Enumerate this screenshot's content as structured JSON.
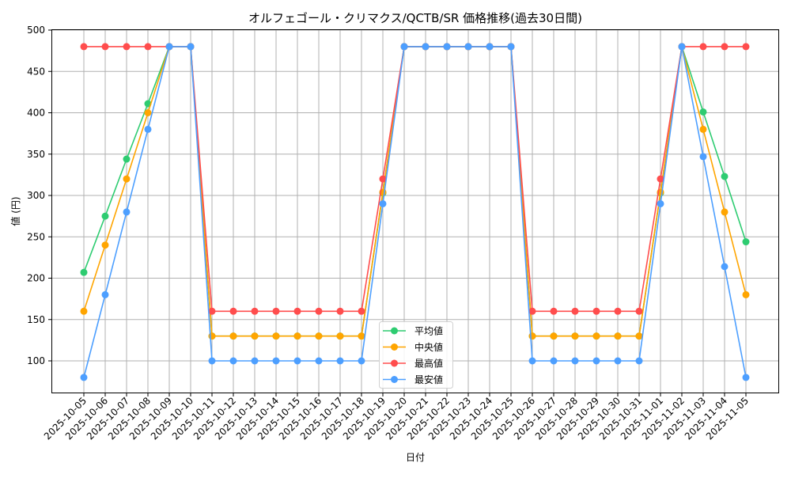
{
  "chart_data": {
    "type": "line",
    "title": "オルフェゴール・クリマクス/QCTB/SR 価格推移(過去30日間)",
    "xlabel": "日付",
    "ylabel": "値 (円)",
    "ylim": [
      60,
      500
    ],
    "yticks": [
      100,
      150,
      200,
      250,
      300,
      350,
      400,
      450,
      500
    ],
    "grid": true,
    "legend_position": "lower center",
    "categories": [
      "2025-10-05",
      "2025-10-06",
      "2025-10-07",
      "2025-10-08",
      "2025-10-09",
      "2025-10-10",
      "2025-10-11",
      "2025-10-12",
      "2025-10-13",
      "2025-10-14",
      "2025-10-15",
      "2025-10-16",
      "2025-10-17",
      "2025-10-18",
      "2025-10-19",
      "2025-10-20",
      "2025-10-21",
      "2025-10-22",
      "2025-10-23",
      "2025-10-24",
      "2025-10-25",
      "2025-10-26",
      "2025-10-27",
      "2025-10-28",
      "2025-10-29",
      "2025-10-30",
      "2025-10-31",
      "2025-11-01",
      "2025-11-02",
      "2025-11-03",
      "2025-11-04",
      "2025-11-05"
    ],
    "series": [
      {
        "name": "平均値",
        "color": "#2ecc71",
        "values": [
          207,
          275,
          344,
          411,
          480,
          480,
          130,
          130,
          130,
          130,
          130,
          130,
          130,
          130,
          303,
          480,
          480,
          480,
          480,
          480,
          480,
          130,
          130,
          130,
          130,
          130,
          130,
          303,
          480,
          401,
          323,
          244
        ]
      },
      {
        "name": "中央値",
        "color": "#ffa500",
        "values": [
          160,
          240,
          320,
          400,
          480,
          480,
          130,
          130,
          130,
          130,
          130,
          130,
          130,
          130,
          304,
          480,
          480,
          480,
          480,
          480,
          480,
          130,
          130,
          130,
          130,
          130,
          130,
          304,
          480,
          380,
          280,
          180
        ]
      },
      {
        "name": "最高値",
        "color": "#ff4d4d",
        "values": [
          480,
          480,
          480,
          480,
          480,
          480,
          160,
          160,
          160,
          160,
          160,
          160,
          160,
          160,
          320,
          480,
          480,
          480,
          480,
          480,
          480,
          160,
          160,
          160,
          160,
          160,
          160,
          320,
          480,
          480,
          480,
          480
        ]
      },
      {
        "name": "最安値",
        "color": "#4d9fff",
        "values": [
          80,
          180,
          280,
          380,
          480,
          480,
          100,
          100,
          100,
          100,
          100,
          100,
          100,
          100,
          290,
          480,
          480,
          480,
          480,
          480,
          480,
          100,
          100,
          100,
          100,
          100,
          100,
          290,
          480,
          347,
          214,
          80
        ]
      }
    ]
  }
}
